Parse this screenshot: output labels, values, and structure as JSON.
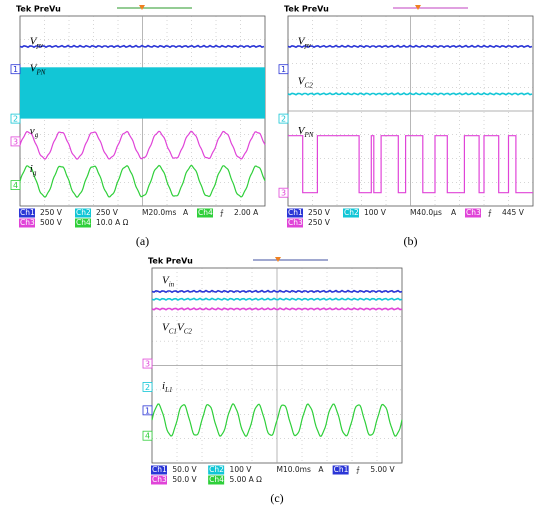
{
  "panels": [
    {
      "caption": "(a)",
      "header": "Tek PreVu",
      "labels": [
        {
          "main": "V",
          "sub": "pv"
        },
        {
          "main": "V",
          "sub": "PN"
        },
        {
          "main": "v",
          "sub": "g"
        },
        {
          "main": "i",
          "sub": "g"
        }
      ],
      "markers": [
        "1",
        "2",
        "3",
        "4"
      ],
      "readout": [
        [
          "Ch1",
          "250 V",
          "Ch2",
          "250 V",
          "M20.0ms",
          "A",
          "Ch4",
          "⨍",
          "2.00 A"
        ],
        [
          "Ch3",
          "500 V",
          "Ch4",
          "10.0 A Ω"
        ]
      ]
    },
    {
      "caption": "(b)",
      "header": "Tek PreVu",
      "labels": [
        {
          "main": "V",
          "sub": "pv"
        },
        {
          "main": "V",
          "sub": "C2"
        },
        {
          "main": "V",
          "sub": "PN"
        }
      ],
      "markers": [
        "1",
        "2",
        "3"
      ],
      "readout": [
        [
          "Ch1",
          "250 V",
          "Ch2",
          "100 V",
          "M40.0µs",
          "A",
          "Ch3",
          "⨍",
          "445 V"
        ],
        [
          "Ch3",
          "250 V"
        ]
      ]
    },
    {
      "caption": "(c)",
      "header": "Tek PreVu",
      "labels": [
        {
          "main": "V",
          "sub": "in"
        },
        {
          "main": "V",
          "sub": "C1"
        },
        {
          "main": "V",
          "sub": "C2"
        },
        {
          "main": "i",
          "sub": "L1"
        }
      ],
      "markers": [
        "3",
        "2",
        "1",
        "4"
      ],
      "readout": [
        [
          "Ch1",
          "50.0 V",
          "Ch2",
          "100 V",
          "M10.0ms",
          "A",
          "Ch1",
          "⨍",
          "5.00 V"
        ],
        [
          "Ch3",
          "50.0 V",
          "Ch4",
          "5.00 A Ω"
        ]
      ]
    }
  ]
}
